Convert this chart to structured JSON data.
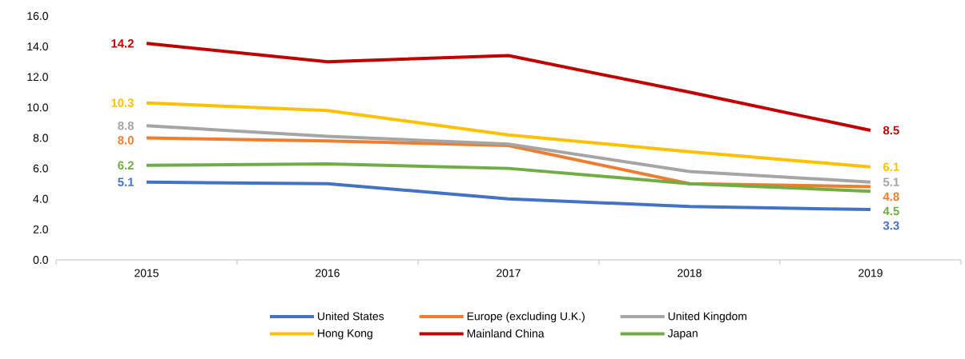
{
  "chart_data": {
    "type": "line",
    "categories": [
      "2015",
      "2016",
      "2017",
      "2018",
      "2019"
    ],
    "series": [
      {
        "name": "United States",
        "color": "#4472c4",
        "values": [
          5.1,
          5.0,
          4.0,
          3.5,
          3.3
        ],
        "value_labels": [
          "5.1",
          null,
          null,
          null,
          "3.3"
        ]
      },
      {
        "name": "Europe (excluding U.K.)",
        "color": "#ed7d31",
        "values": [
          8.0,
          7.8,
          7.5,
          5.0,
          4.8
        ],
        "value_labels": [
          "8.0",
          null,
          null,
          null,
          "4.8"
        ]
      },
      {
        "name": "United Kingdom",
        "color": "#a5a5a5",
        "values": [
          8.8,
          8.1,
          7.6,
          5.8,
          5.1
        ],
        "value_labels": [
          "8.8",
          null,
          null,
          null,
          "5.1"
        ]
      },
      {
        "name": "Hong Kong",
        "color": "#ffc000",
        "values": [
          10.3,
          9.8,
          8.2,
          7.1,
          6.1
        ],
        "value_labels": [
          "10.3",
          null,
          null,
          null,
          "6.1"
        ]
      },
      {
        "name": "Mainland China",
        "color": "#c00000",
        "values": [
          14.2,
          13.0,
          13.4,
          11.0,
          8.5
        ],
        "value_labels": [
          "14.2",
          null,
          null,
          null,
          "8.5"
        ]
      },
      {
        "name": "Japan",
        "color": "#70ad47",
        "values": [
          6.2,
          6.3,
          6.0,
          5.0,
          4.5
        ],
        "value_labels": [
          "6.2",
          null,
          null,
          null,
          "4.5"
        ]
      }
    ],
    "ylim": [
      0,
      16
    ],
    "yticks": [
      {
        "value": 0,
        "label": "0.0"
      },
      {
        "value": 2,
        "label": "2.0"
      },
      {
        "value": 4,
        "label": "4.0"
      },
      {
        "value": 6,
        "label": "6.0"
      },
      {
        "value": 8,
        "label": "8.0"
      },
      {
        "value": 10,
        "label": "10.0"
      },
      {
        "value": 12,
        "label": "12.0"
      },
      {
        "value": 14,
        "label": "14.0"
      },
      {
        "value": 16,
        "label": "16.0"
      }
    ],
    "grid": false,
    "legend": "bottom",
    "marker": "none",
    "line_style": "solid"
  }
}
